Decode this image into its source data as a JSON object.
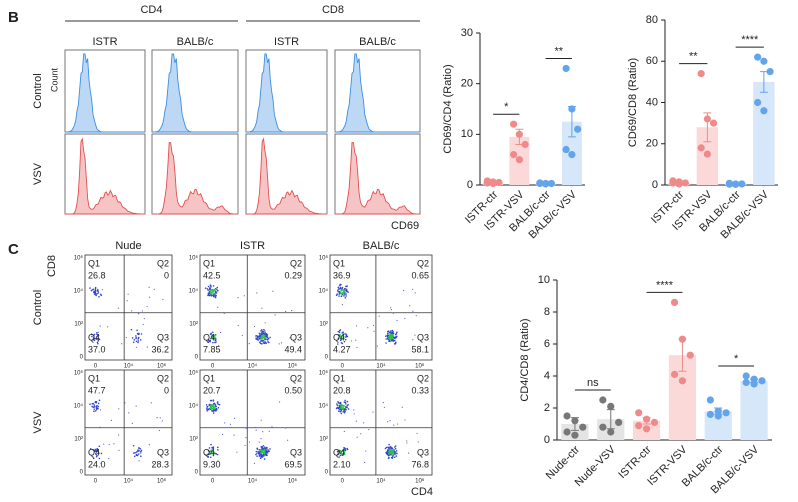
{
  "panel_labels": [
    "B",
    "C"
  ],
  "histograms": {
    "groups": [
      "CD4",
      "CD8"
    ],
    "strains": [
      "ISTR",
      "BALB/c"
    ],
    "rows": [
      "Control",
      "VSV"
    ],
    "y_label": "Count",
    "x_label": "CD69"
  },
  "flow": {
    "columns": [
      "Nude",
      "ISTR",
      "BALB/c"
    ],
    "rows": [
      "Control",
      "VSV"
    ],
    "y_label": "CD8",
    "x_label": "CD4",
    "yticks": [
      "10⁶",
      "10⁴",
      "10²",
      "0"
    ],
    "xticks": [
      "0",
      "10⁴",
      "10⁶"
    ],
    "quadrant_names": [
      "Q1",
      "Q2",
      "Q3",
      "Q4"
    ],
    "plots": [
      [
        [
          "26.8",
          "0",
          "36.2",
          "37.0"
        ],
        [
          "42.5",
          "0.29",
          "49.4",
          "7.85"
        ],
        [
          "36.9",
          "0.65",
          "58.1",
          "4.27"
        ]
      ],
      [
        [
          "47.7",
          "0",
          "28.3",
          "24.0"
        ],
        [
          "20.7",
          "0.50",
          "69.5",
          "9.30"
        ],
        [
          "20.8",
          "0.33",
          "76.8",
          "2.10"
        ]
      ]
    ]
  },
  "chart_data": [
    {
      "type": "bar",
      "y_label": "CD69/CD4 (Ratio)",
      "categories": [
        "ISTR-ctr",
        "ISTR-VSV",
        "BALB/c-ctr",
        "BALB/c-VSV"
      ],
      "values": [
        0.5,
        9.5,
        0.3,
        12.5
      ],
      "errors": [
        0.1,
        1.5,
        0.05,
        3
      ],
      "points": [
        [
          0.8,
          0.6,
          0.5,
          0.4,
          0.3
        ],
        [
          12,
          10,
          8,
          6,
          5
        ],
        [
          0.4,
          0.3,
          0.3,
          0.3,
          0.2
        ],
        [
          23,
          15,
          11,
          7,
          6
        ]
      ],
      "colors": [
        "#fbd9d9",
        "#fbd9d9",
        "#d6e7fa",
        "#d6e7fa"
      ],
      "point_colors": [
        "#f08a8a",
        "#f08a8a",
        "#63a4ea",
        "#63a4ea"
      ],
      "ylim": [
        0,
        30
      ],
      "yticks": [
        0,
        10,
        20,
        30
      ],
      "annotations": [
        "*",
        "**"
      ]
    },
    {
      "type": "bar",
      "y_label": "CD69/CD8 (Ratio)",
      "categories": [
        "ISTR-ctr",
        "ISTR-VSV",
        "BALB/c-ctr",
        "BALB/c-VSV"
      ],
      "values": [
        1,
        28,
        0.5,
        50
      ],
      "errors": [
        0.3,
        7,
        0.1,
        5
      ],
      "points": [
        [
          2,
          1.5,
          1,
          1,
          0.5
        ],
        [
          54,
          32,
          30,
          18,
          15
        ],
        [
          0.8,
          0.5,
          0.5,
          0.4,
          0.3
        ],
        [
          62,
          60,
          55,
          40,
          36
        ]
      ],
      "colors": [
        "#fbd9d9",
        "#fbd9d9",
        "#d6e7fa",
        "#d6e7fa"
      ],
      "point_colors": [
        "#f08a8a",
        "#f08a8a",
        "#63a4ea",
        "#63a4ea"
      ],
      "ylim": [
        0,
        80
      ],
      "yticks": [
        0,
        20,
        40,
        60,
        80
      ],
      "annotations": [
        "**",
        "****"
      ]
    },
    {
      "type": "bar",
      "y_label": "CD4/CD8 (Ratio)",
      "categories": [
        "Nude-ctr",
        "Nude-VSV",
        "ISTR-ctr",
        "ISTR-VSV",
        "BALB/c-ctr",
        "BALB/c-VSV"
      ],
      "values": [
        1.0,
        1.3,
        1.2,
        5.3,
        1.8,
        3.7
      ],
      "errors": [
        0.4,
        0.6,
        0.2,
        1.0,
        0.2,
        0.1
      ],
      "points": [
        [
          1.5,
          1.2,
          0.8,
          0.5,
          0.3
        ],
        [
          2.5,
          2.1,
          1.1,
          0.8,
          0.5
        ],
        [
          1.7,
          1.3,
          1.1,
          0.9,
          0.7
        ],
        [
          8.6,
          6.3,
          5.3,
          4.1,
          3.7
        ],
        [
          2.5,
          1.8,
          1.7,
          1.6,
          1.5
        ],
        [
          4.0,
          3.8,
          3.7,
          3.6,
          3.5
        ]
      ],
      "colors": [
        "#e4e4e4",
        "#e4e4e4",
        "#fbd9d9",
        "#fbd9d9",
        "#d6e7fa",
        "#d6e7fa"
      ],
      "point_colors": [
        "#777777",
        "#777777",
        "#f08a8a",
        "#f08a8a",
        "#63a4ea",
        "#63a4ea"
      ],
      "ylim": [
        0,
        10
      ],
      "yticks": [
        0,
        2,
        4,
        6,
        8,
        10
      ],
      "annotations": [
        "ns",
        "****",
        "*"
      ]
    }
  ]
}
